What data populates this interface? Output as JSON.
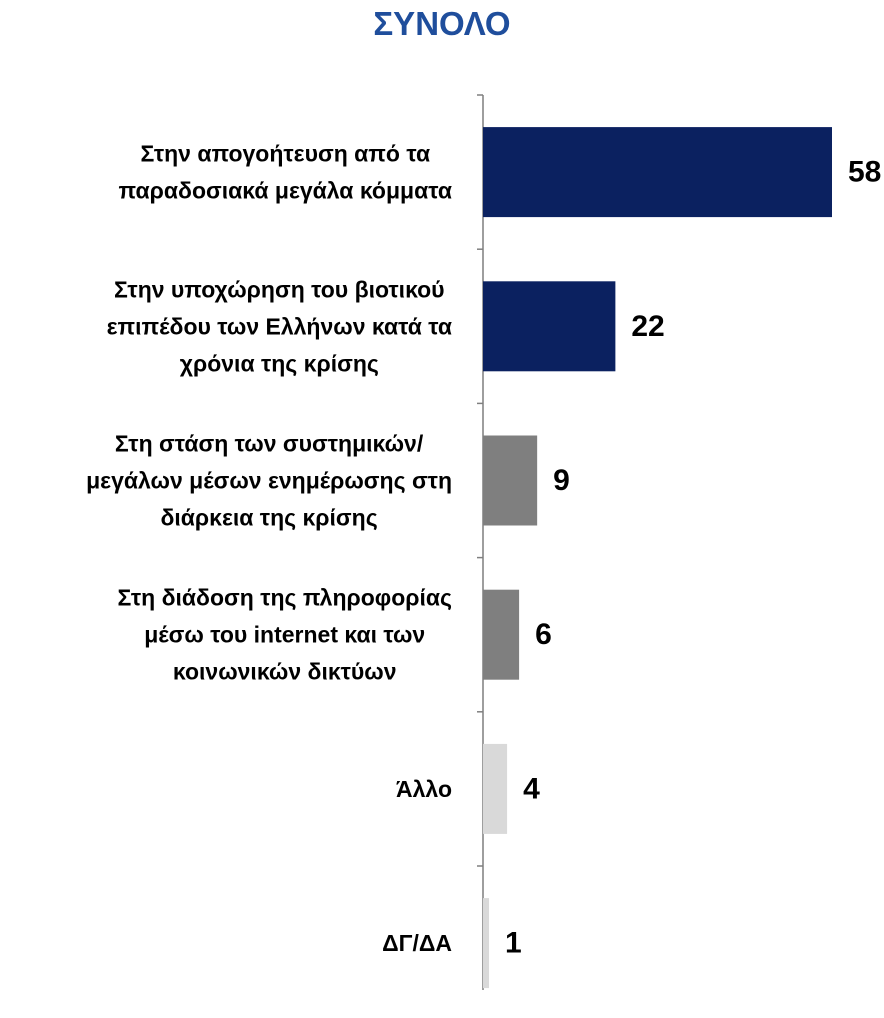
{
  "chart_data": {
    "type": "bar",
    "orientation": "horizontal",
    "title": "ΣΥΝΟΛΟ",
    "categories": [
      [
        "Στην απογοήτευση από τα",
        "παραδοσιακά μεγάλα κόμματα"
      ],
      [
        "Στην υποχώρηση του βιοτικού",
        "επιπέδου των Ελλήνων κατά τα",
        "χρόνια της κρίσης"
      ],
      [
        "Στη στάση των συστημικών/",
        "μεγάλων μέσων ενημέρωσης στη",
        "διάρκεια της κρίσης"
      ],
      [
        "Στη διάδοση της πληροφορίας",
        "μέσω του internet και των",
        "κοινωνικών δικτύων"
      ],
      [
        "Άλλο"
      ],
      [
        "ΔΓ/ΔΑ"
      ]
    ],
    "values": [
      58,
      22,
      9,
      6,
      4,
      1
    ],
    "value_labels": [
      "58",
      "22",
      "9",
      "6",
      "4",
      "1"
    ],
    "colors": [
      "#0b2160",
      "#0b2160",
      "#7f7f7f",
      "#7f7f7f",
      "#d9d9d9",
      "#d9d9d9"
    ],
    "xlim": [
      0,
      58
    ],
    "grid": false,
    "legend": "none"
  }
}
